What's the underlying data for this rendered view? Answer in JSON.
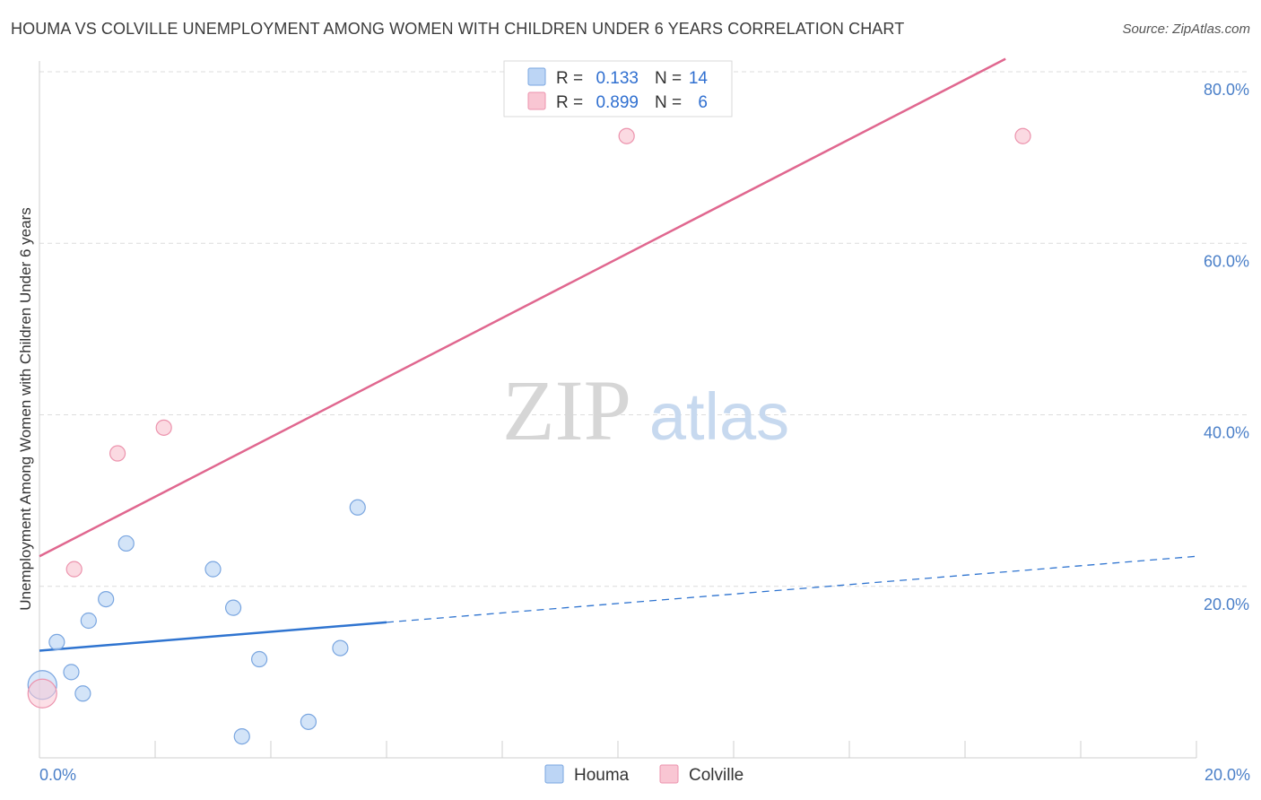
{
  "title": "HOUMA VS COLVILLE UNEMPLOYMENT AMONG WOMEN WITH CHILDREN UNDER 6 YEARS CORRELATION CHART",
  "source": "Source: ZipAtlas.com",
  "watermark": {
    "zip": "ZIP",
    "atlas": "atlas"
  },
  "colors": {
    "houma_fill": "#bcd5f5",
    "houma_stroke": "#7aa6e0",
    "houma_line": "#2f74d0",
    "colville_fill": "#f9c6d3",
    "colville_stroke": "#ec93ad",
    "colville_line": "#e0678f",
    "grid": "#dcdcdc",
    "tick_label": "#4a7fc8"
  },
  "legend": {
    "rows": [
      {
        "series": "Houma",
        "r_label": "R =",
        "r_value": "0.133",
        "n_label": "N =",
        "n_value": "14"
      },
      {
        "series": "Colville",
        "r_label": "R =",
        "r_value": "0.899",
        "n_label": "N =",
        "n_value": "6"
      }
    ]
  },
  "chart_data": {
    "type": "scatter",
    "title": "HOUMA VS COLVILLE UNEMPLOYMENT AMONG WOMEN WITH CHILDREN UNDER 6 YEARS CORRELATION CHART",
    "xlabel": "",
    "ylabel": "Unemployment Among Women with Children Under 6 years",
    "xlim": [
      0,
      20
    ],
    "ylim": [
      0,
      80
    ],
    "x_tick_labels": [
      "0.0%",
      "20.0%"
    ],
    "y_ticks": [
      20,
      40,
      60,
      80
    ],
    "y_tick_labels": [
      "20.0%",
      "40.0%",
      "60.0%",
      "80.0%"
    ],
    "grid": true,
    "legend_position": "top-center",
    "series": [
      {
        "name": "Houma",
        "points": [
          {
            "x": 0.05,
            "y": 8.5,
            "big": true
          },
          {
            "x": 0.3,
            "y": 13.5
          },
          {
            "x": 0.55,
            "y": 10.0
          },
          {
            "x": 0.75,
            "y": 7.5
          },
          {
            "x": 0.85,
            "y": 16.0
          },
          {
            "x": 1.15,
            "y": 18.5
          },
          {
            "x": 1.5,
            "y": 25.0
          },
          {
            "x": 3.0,
            "y": 22.0
          },
          {
            "x": 3.35,
            "y": 17.5
          },
          {
            "x": 3.5,
            "y": 2.5
          },
          {
            "x": 3.8,
            "y": 11.5
          },
          {
            "x": 4.65,
            "y": 4.2
          },
          {
            "x": 5.2,
            "y": 12.8
          },
          {
            "x": 5.5,
            "y": 29.2
          }
        ],
        "trend": {
          "x0": 0,
          "y0": 12.5,
          "x1": 6.0,
          "y1": 15.8,
          "dashed_to_x": 20,
          "dashed_to_y": 23.5
        }
      },
      {
        "name": "Colville",
        "points": [
          {
            "x": 0.05,
            "y": 7.5,
            "big": true
          },
          {
            "x": 0.6,
            "y": 22.0
          },
          {
            "x": 1.35,
            "y": 35.5
          },
          {
            "x": 2.15,
            "y": 38.5
          },
          {
            "x": 10.15,
            "y": 72.5
          },
          {
            "x": 17.0,
            "y": 72.5
          }
        ],
        "trend": {
          "x0": 0,
          "y0": 23.5,
          "x1": 16.7,
          "y1": 81.5
        }
      }
    ]
  }
}
